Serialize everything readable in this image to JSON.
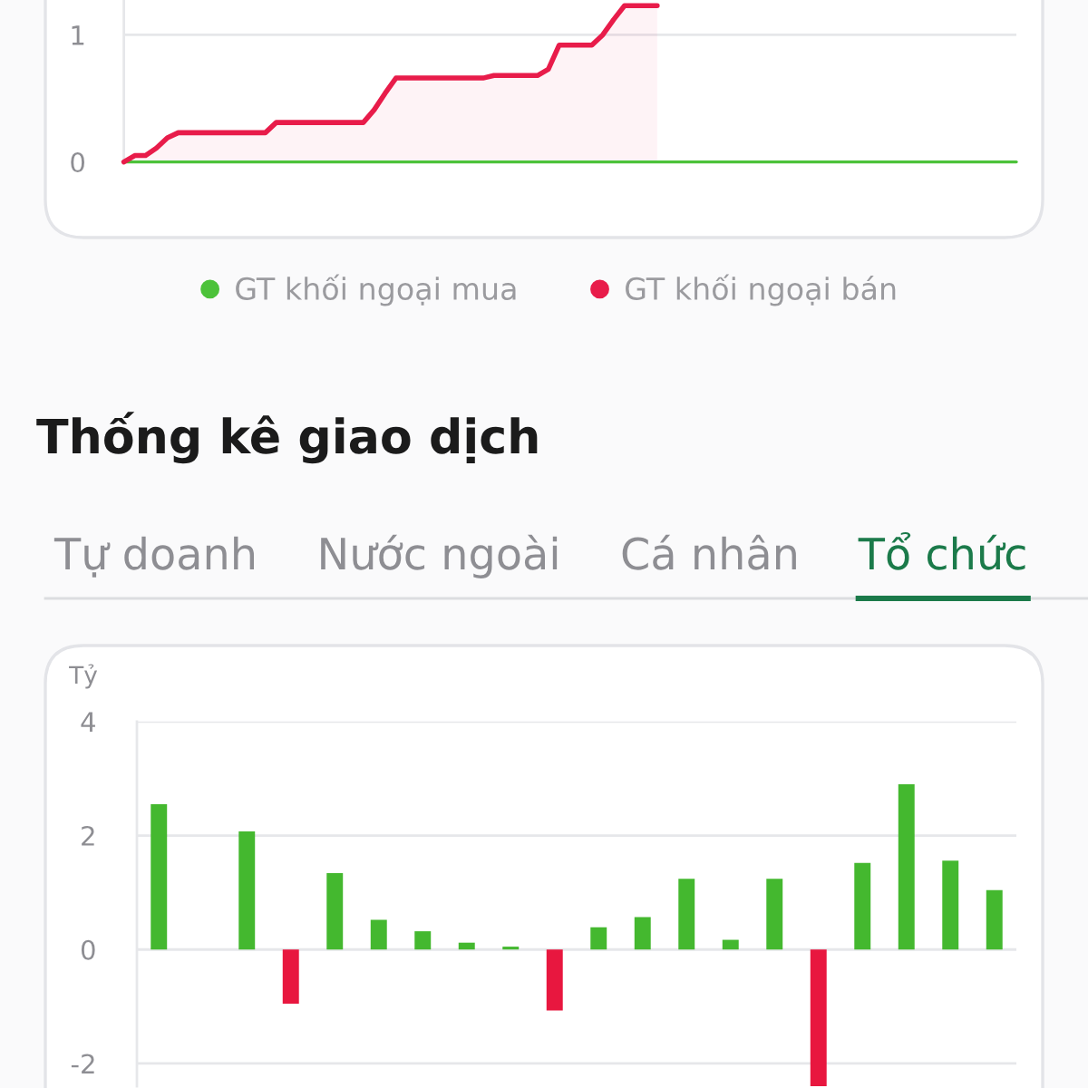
{
  "chart_data": [
    {
      "type": "line",
      "categories": [
        null,
        null,
        null,
        null,
        null,
        null,
        null,
        null,
        null,
        null,
        null,
        null,
        null,
        null,
        null,
        null,
        null,
        null,
        null,
        null,
        null,
        null,
        null,
        null,
        null,
        null,
        null,
        null,
        null,
        null,
        null,
        null,
        null,
        null,
        null,
        null,
        null,
        null,
        null,
        null,
        null,
        null,
        null,
        null,
        null,
        null,
        null,
        null,
        null,
        null,
        null,
        null,
        null,
        null,
        null,
        null,
        null,
        null,
        null,
        null,
        null,
        null,
        null,
        null,
        null,
        null,
        null,
        null,
        null,
        null,
        null,
        null,
        null,
        null,
        null,
        null,
        null,
        null,
        null,
        null,
        null,
        null,
        null
      ],
      "ylim": [
        0,
        1.27
      ],
      "yticks": [
        0,
        1
      ],
      "grid": "y",
      "legend": "bottom",
      "series": [
        {
          "name": "GT khối ngoại mua",
          "color": "#4cc23a",
          "values": [
            0,
            0,
            0,
            0,
            0,
            0,
            0,
            0,
            0,
            0,
            0,
            0,
            0,
            0,
            0,
            0,
            0,
            0,
            0,
            0,
            0,
            0,
            0,
            0,
            0,
            0,
            0,
            0,
            0,
            0,
            0,
            0,
            0,
            0,
            0,
            0,
            0,
            0,
            0,
            0,
            0,
            0,
            0,
            0,
            0,
            0,
            0,
            0,
            0,
            0,
            0,
            0,
            0,
            0,
            0,
            0,
            0,
            0,
            0,
            0,
            0,
            0,
            0,
            0,
            0,
            0,
            0,
            0,
            0,
            0,
            0,
            0,
            0,
            0,
            0,
            0,
            0,
            0,
            0,
            0,
            0,
            0,
            0
          ]
        },
        {
          "name": "GT khối ngoại bán",
          "color": "#e81c4a",
          "type": "area",
          "values": [
            0,
            0.05,
            0.05,
            0.11,
            0.19,
            0.23,
            0.23,
            0.23,
            0.23,
            0.23,
            0.23,
            0.23,
            0.23,
            0.23,
            0.31,
            0.31,
            0.31,
            0.31,
            0.31,
            0.31,
            0.31,
            0.31,
            0.31,
            0.41,
            0.54,
            0.66,
            0.66,
            0.66,
            0.66,
            0.66,
            0.66,
            0.66,
            0.66,
            0.66,
            0.68,
            0.68,
            0.68,
            0.68,
            0.68,
            0.73,
            0.92,
            0.92,
            0.92,
            0.92,
            1.0,
            1.12,
            1.23,
            1.23,
            1.23,
            1.23,
            null,
            null,
            null,
            null,
            null,
            null,
            null,
            null,
            null,
            null,
            null,
            null,
            null,
            null,
            null,
            null,
            null,
            null,
            null,
            null,
            null,
            null,
            null,
            null,
            null,
            null,
            null,
            null,
            null,
            null,
            null,
            null,
            null
          ]
        }
      ]
    },
    {
      "type": "bar",
      "title": "Thống kê giao dịch",
      "subtitle": "Tổ chức",
      "annotations": [
        "Tự doanh",
        "Nước ngoài",
        "Cá nhân"
      ],
      "ylabel": "Tỷ",
      "categories": [
        null,
        null,
        null,
        null,
        null,
        null,
        null,
        null,
        null,
        null,
        null,
        null,
        null,
        null,
        null,
        null,
        null,
        null,
        null,
        null
      ],
      "values": [
        2.55,
        null,
        2.07,
        -0.95,
        1.34,
        0.52,
        0.32,
        0.12,
        0.05,
        -1.07,
        0.39,
        0.57,
        1.24,
        0.17,
        1.24,
        -2.4,
        1.52,
        2.9,
        1.56,
        1.04
      ],
      "colors": [
        "#44b82f",
        "#44b82f",
        "#44b82f",
        "#e8173f",
        "#44b82f",
        "#44b82f",
        "#44b82f",
        "#44b82f",
        "#44b82f",
        "#e8173f",
        "#44b82f",
        "#44b82f",
        "#44b82f",
        "#44b82f",
        "#44b82f",
        "#e8173f",
        "#44b82f",
        "#44b82f",
        "#44b82f",
        "#44b82f"
      ],
      "ylim": [
        -2.4,
        4
      ],
      "yticks": [
        -2,
        0,
        2,
        4
      ],
      "grid": "y"
    }
  ]
}
